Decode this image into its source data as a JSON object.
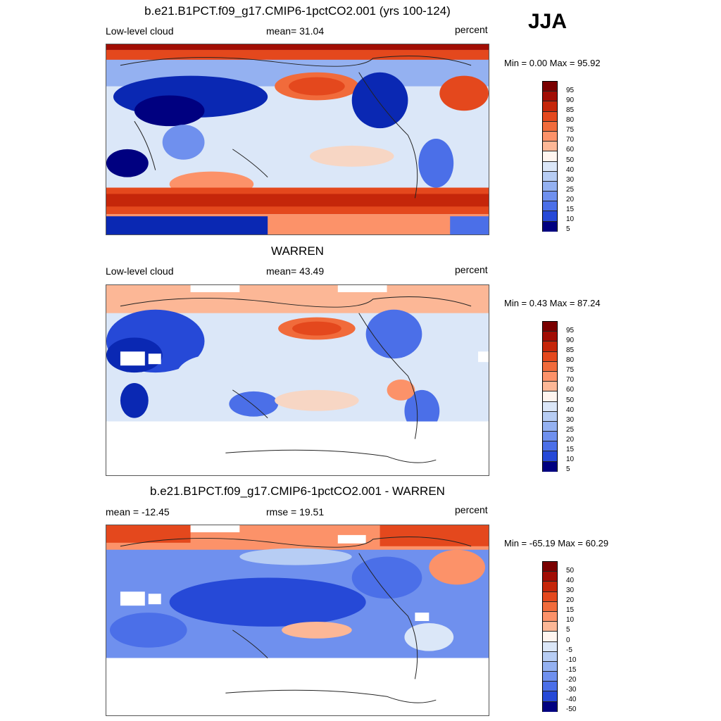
{
  "season": "JJA",
  "colors": {
    "pos": [
      "#f7d6c4",
      "#fcb796",
      "#fc9269",
      "#f16b3b",
      "#e4481d",
      "#c5260a",
      "#a10d04",
      "#7a0000"
    ],
    "neg": [
      "#dbe7f8",
      "#b7cdf4",
      "#94b1f1",
      "#6f90ee",
      "#4b6fe8",
      "#2649d7",
      "#0a28b3",
      "#000080"
    ],
    "mid_light": "#fff5ef"
  },
  "panels": [
    {
      "title": "b.e21.B1PCT.f09_g17.CMIP6-1pctCO2.001 (yrs 100-124)",
      "left": "Low-level cloud",
      "center": "mean=  31.04",
      "right": "percent",
      "minmax": "Min =   0.00 Max =  95.92",
      "colorbar_labels": [
        "95",
        "90",
        "85",
        "80",
        "75",
        "70",
        "60",
        "50",
        "40",
        "30",
        "25",
        "20",
        "15",
        "10",
        "5"
      ]
    },
    {
      "title": "WARREN",
      "left": "Low-level cloud",
      "center": "mean=  43.49",
      "right": "percent",
      "minmax": "Min =   0.43 Max =  87.24",
      "colorbar_labels": [
        "95",
        "90",
        "85",
        "80",
        "75",
        "70",
        "60",
        "50",
        "40",
        "30",
        "25",
        "20",
        "15",
        "10",
        "5"
      ]
    },
    {
      "title": "b.e21.B1PCT.f09_g17.CMIP6-1pctCO2.001 - WARREN",
      "left": "mean = -12.45",
      "center": "rmse =  19.51",
      "right": "percent",
      "minmax": "Min = -65.19 Max =  60.29",
      "colorbar_labels": [
        "50",
        "40",
        "30",
        "20",
        "15",
        "10",
        "5",
        "0",
        "-5",
        "-10",
        "-15",
        "-20",
        "-30",
        "-40",
        "-50"
      ]
    }
  ]
}
